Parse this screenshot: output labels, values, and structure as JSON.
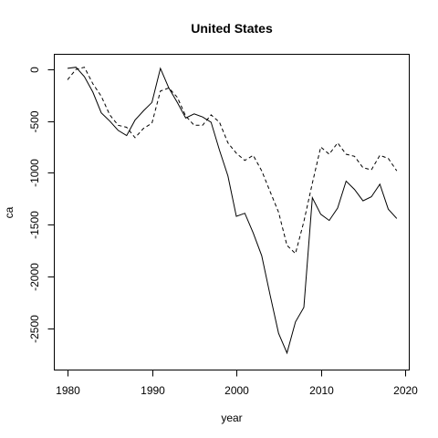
{
  "chart_data": {
    "type": "line",
    "title": "United States",
    "xlabel": "year",
    "ylabel": "ca",
    "xlim": [
      1980,
      2019
    ],
    "ylim": [
      -2900,
      150
    ],
    "x_ticks": [
      1980,
      1990,
      2000,
      2010,
      2020
    ],
    "y_ticks": [
      0,
      -500,
      -1000,
      -1500,
      -2000,
      -2500
    ],
    "x": [
      1980,
      1981,
      1982,
      1983,
      1984,
      1985,
      1986,
      1987,
      1988,
      1989,
      1990,
      1991,
      1992,
      1993,
      1994,
      1995,
      1996,
      1997,
      1998,
      1999,
      2000,
      2001,
      2002,
      2003,
      2004,
      2005,
      2006,
      2007,
      2008,
      2009,
      2010,
      2011,
      2012,
      2013,
      2014,
      2015,
      2016,
      2017,
      2018,
      2019
    ],
    "series": [
      {
        "style": "solid",
        "values": [
          10,
          20,
          -70,
          -220,
          -420,
          -500,
          -590,
          -640,
          -490,
          -400,
          -320,
          10,
          -180,
          -320,
          -470,
          -430,
          -460,
          -510,
          -780,
          -1030,
          -1420,
          -1390,
          -1580,
          -1800,
          -2180,
          -2550,
          -2740,
          -2440,
          -2300,
          -1240,
          -1400,
          -1460,
          -1340,
          -1080,
          -1160,
          -1270,
          -1230,
          -1110,
          -1350,
          -1440
        ]
      },
      {
        "style": "dashed",
        "values": [
          -100,
          0,
          20,
          -140,
          -260,
          -440,
          -540,
          -560,
          -660,
          -570,
          -520,
          -210,
          -180,
          -270,
          -450,
          -540,
          -540,
          -440,
          -510,
          -710,
          -810,
          -880,
          -830,
          -980,
          -1180,
          -1380,
          -1700,
          -1780,
          -1470,
          -1100,
          -750,
          -820,
          -710,
          -820,
          -840,
          -950,
          -970,
          -830,
          -860,
          -980
        ]
      }
    ]
  }
}
